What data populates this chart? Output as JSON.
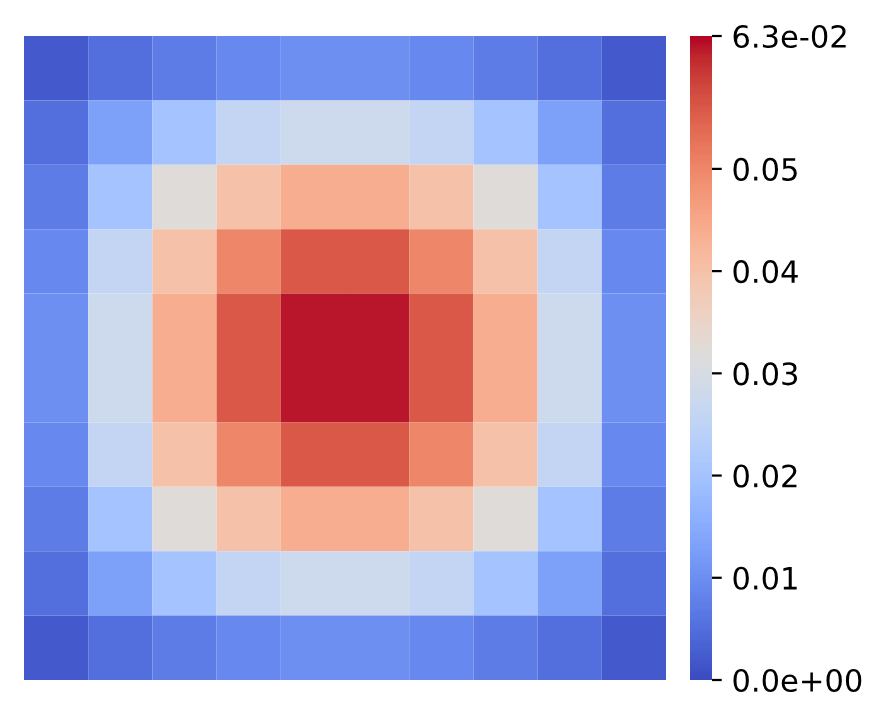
{
  "chart_data": {
    "type": "heatmap",
    "categories": [
      null,
      null,
      null,
      null,
      null,
      null,
      null,
      null,
      null,
      null
    ],
    "y_categories": [
      null,
      null,
      null,
      null,
      null,
      null,
      null,
      null,
      null,
      null
    ],
    "cells": [
      [
        0.002,
        0.005,
        0.007,
        0.009,
        0.01,
        0.01,
        0.009,
        0.007,
        0.005,
        0.002
      ],
      [
        0.005,
        0.013,
        0.02,
        0.026,
        0.028,
        0.028,
        0.026,
        0.02,
        0.013,
        0.005
      ],
      [
        0.007,
        0.02,
        0.032,
        0.04,
        0.044,
        0.044,
        0.04,
        0.032,
        0.02,
        0.007
      ],
      [
        0.009,
        0.026,
        0.04,
        0.05,
        0.056,
        0.056,
        0.05,
        0.04,
        0.026,
        0.009
      ],
      [
        0.01,
        0.028,
        0.044,
        0.056,
        0.062,
        0.062,
        0.056,
        0.044,
        0.028,
        0.01
      ],
      [
        0.01,
        0.028,
        0.044,
        0.056,
        0.062,
        0.062,
        0.056,
        0.044,
        0.028,
        0.01
      ],
      [
        0.009,
        0.026,
        0.04,
        0.05,
        0.056,
        0.056,
        0.05,
        0.04,
        0.026,
        0.009
      ],
      [
        0.007,
        0.02,
        0.032,
        0.04,
        0.044,
        0.044,
        0.04,
        0.032,
        0.02,
        0.007
      ],
      [
        0.005,
        0.013,
        0.02,
        0.026,
        0.028,
        0.028,
        0.026,
        0.02,
        0.013,
        0.005
      ],
      [
        0.002,
        0.005,
        0.007,
        0.009,
        0.01,
        0.01,
        0.009,
        0.007,
        0.005,
        0.002
      ]
    ],
    "clim": [
      0,
      0.063
    ],
    "cticks": [
      {
        "value": 0,
        "label": "0.0e+00"
      },
      0.01,
      0.02,
      0.03,
      0.04,
      0.05,
      {
        "value": 0.063,
        "label": "6.3e-02"
      }
    ]
  }
}
